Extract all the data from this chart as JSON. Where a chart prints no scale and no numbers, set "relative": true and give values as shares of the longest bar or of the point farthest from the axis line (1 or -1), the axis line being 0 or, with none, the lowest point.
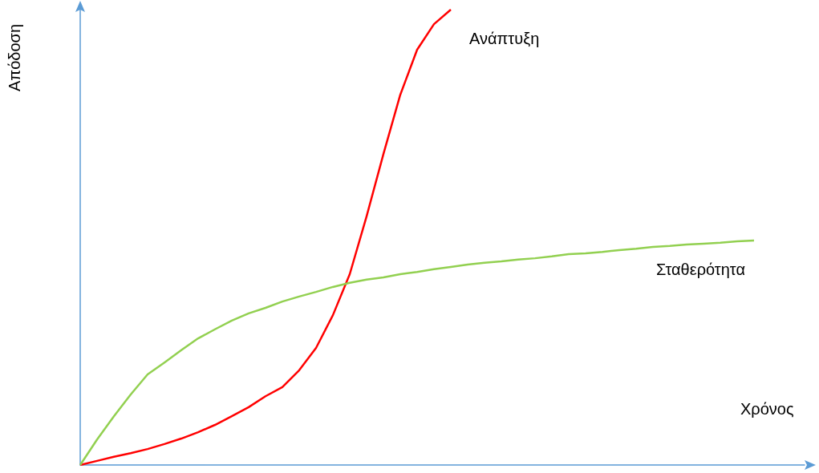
{
  "chart_data": {
    "type": "line",
    "xlabel": "Χρόνος",
    "ylabel": "Απόδοση",
    "relative": true,
    "marker": "none",
    "categories": [
      null,
      null,
      null,
      null,
      null,
      null,
      null,
      null,
      null,
      null,
      null,
      null,
      null,
      null,
      null,
      null,
      null,
      null,
      null,
      null,
      null,
      null,
      null,
      null,
      null,
      null,
      null,
      null,
      null,
      null,
      null,
      null,
      null,
      null,
      null,
      null,
      null,
      null,
      null,
      null,
      null,
      null,
      null,
      null
    ],
    "series": [
      {
        "name": "Ανάπτυξη",
        "color": "#ff0000",
        "values": [
          0,
          0.009,
          0.018,
          0.026,
          0.035,
          0.046,
          0.058,
          0.072,
          0.088,
          0.107,
          0.127,
          0.151,
          0.171,
          0.208,
          0.257,
          0.329,
          0.419,
          0.546,
          0.683,
          0.813,
          0.912,
          0.968,
          1,
          null,
          null,
          null,
          null,
          null,
          null,
          null,
          null,
          null,
          null,
          null,
          null,
          null,
          null,
          null,
          null,
          null,
          null,
          null,
          null,
          null
        ]
      },
      {
        "name": "Σταθερότητα",
        "color": "#92d050",
        "values": [
          0,
          0.056,
          0.107,
          0.155,
          0.199,
          0.225,
          0.252,
          0.278,
          0.298,
          0.317,
          0.333,
          0.345,
          0.359,
          0.37,
          0.38,
          0.391,
          0.4,
          0.407,
          0.412,
          0.419,
          0.424,
          0.43,
          0.435,
          0.44,
          0.444,
          0.447,
          0.451,
          0.454,
          0.458,
          0.463,
          0.465,
          0.468,
          0.472,
          0.475,
          0.479,
          0.481,
          0.484,
          0.486,
          0.488,
          0.491,
          0.493,
          null,
          null,
          null
        ]
      }
    ]
  }
}
